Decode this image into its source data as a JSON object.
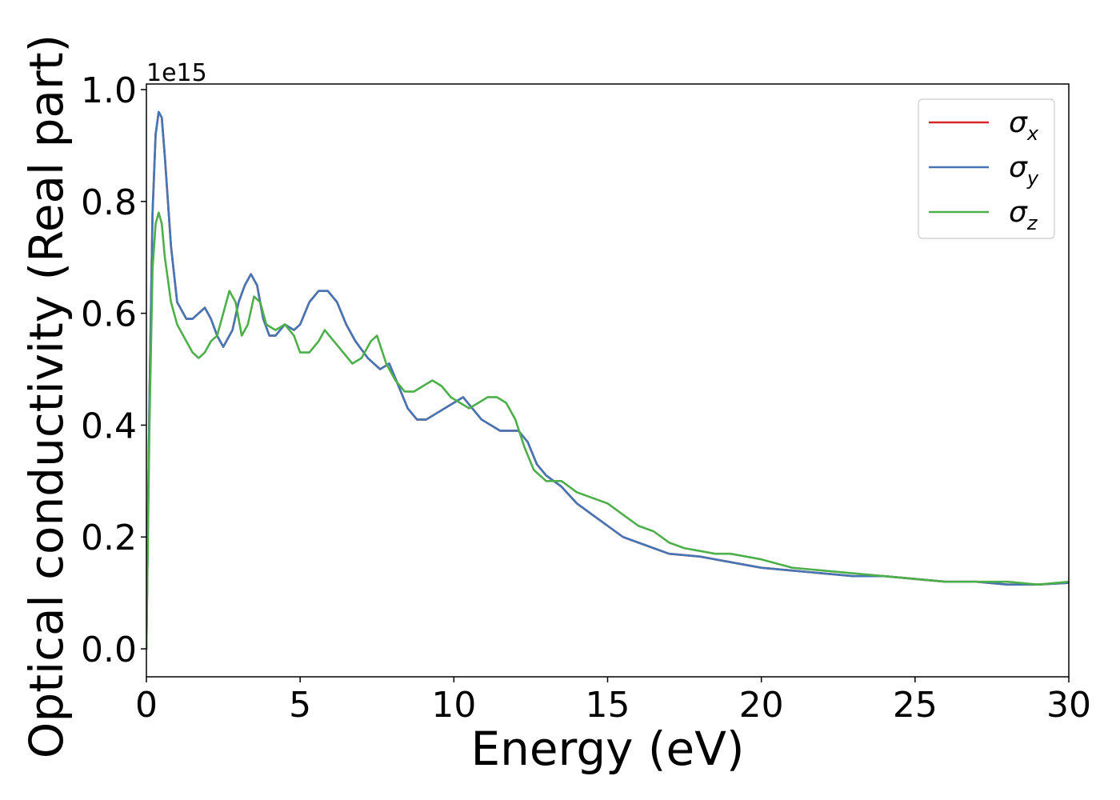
{
  "chart_data": {
    "type": "line",
    "title": "",
    "xlabel": "Energy (eV)",
    "ylabel": "Optical conductivity (Real part)",
    "y_offset_label": "1e15",
    "xlim": [
      0,
      30
    ],
    "ylim": [
      -0.05,
      1.01
    ],
    "x_ticks": [
      0,
      5,
      10,
      15,
      20,
      25,
      30
    ],
    "y_ticks": [
      0.0,
      0.2,
      0.4,
      0.6,
      0.8,
      1.0
    ],
    "grid": false,
    "legend_position": "top-right",
    "series": [
      {
        "name": "σx",
        "legend_symbol": "σ",
        "legend_sub": "x",
        "color": "#d62728",
        "x": [
          0,
          0.1,
          0.2,
          0.3,
          0.4,
          0.5,
          0.6,
          0.8,
          1.0,
          1.3,
          1.5,
          1.7,
          1.9,
          2.1,
          2.3,
          2.5,
          2.8,
          3.0,
          3.2,
          3.4,
          3.6,
          3.8,
          4.0,
          4.2,
          4.5,
          4.8,
          5.0,
          5.3,
          5.6,
          5.9,
          6.2,
          6.5,
          6.8,
          7.2,
          7.6,
          7.9,
          8.2,
          8.5,
          8.8,
          9.1,
          9.4,
          9.7,
          10.0,
          10.3,
          10.6,
          10.9,
          11.2,
          11.5,
          11.8,
          12.1,
          12.4,
          12.7,
          13.0,
          13.5,
          14.0,
          14.5,
          15.0,
          15.5,
          16.0,
          16.5,
          17.0,
          18.0,
          19.0,
          20.0,
          21.0,
          22.0,
          23.0,
          24.0,
          25.0,
          26.0,
          27.0,
          28.0,
          29.0,
          30.0
        ],
        "values": [
          0.0,
          0.45,
          0.78,
          0.92,
          0.96,
          0.95,
          0.88,
          0.72,
          0.62,
          0.59,
          0.59,
          0.6,
          0.61,
          0.59,
          0.56,
          0.54,
          0.57,
          0.62,
          0.65,
          0.67,
          0.65,
          0.59,
          0.56,
          0.56,
          0.58,
          0.57,
          0.58,
          0.62,
          0.64,
          0.64,
          0.62,
          0.58,
          0.55,
          0.52,
          0.5,
          0.51,
          0.47,
          0.43,
          0.41,
          0.41,
          0.42,
          0.43,
          0.44,
          0.45,
          0.43,
          0.41,
          0.4,
          0.39,
          0.39,
          0.39,
          0.37,
          0.33,
          0.31,
          0.29,
          0.26,
          0.24,
          0.22,
          0.2,
          0.19,
          0.18,
          0.17,
          0.165,
          0.155,
          0.145,
          0.14,
          0.135,
          0.13,
          0.13,
          0.125,
          0.12,
          0.12,
          0.115,
          0.115,
          0.118
        ]
      },
      {
        "name": "σy",
        "legend_symbol": "σ",
        "legend_sub": "y",
        "color": "#4575b4",
        "x": [
          0,
          0.1,
          0.2,
          0.3,
          0.4,
          0.5,
          0.6,
          0.8,
          1.0,
          1.3,
          1.5,
          1.7,
          1.9,
          2.1,
          2.3,
          2.5,
          2.8,
          3.0,
          3.2,
          3.4,
          3.6,
          3.8,
          4.0,
          4.2,
          4.5,
          4.8,
          5.0,
          5.3,
          5.6,
          5.9,
          6.2,
          6.5,
          6.8,
          7.2,
          7.6,
          7.9,
          8.2,
          8.5,
          8.8,
          9.1,
          9.4,
          9.7,
          10.0,
          10.3,
          10.6,
          10.9,
          11.2,
          11.5,
          11.8,
          12.1,
          12.4,
          12.7,
          13.0,
          13.5,
          14.0,
          14.5,
          15.0,
          15.5,
          16.0,
          16.5,
          17.0,
          18.0,
          19.0,
          20.0,
          21.0,
          22.0,
          23.0,
          24.0,
          25.0,
          26.0,
          27.0,
          28.0,
          29.0,
          30.0
        ],
        "values": [
          0.0,
          0.45,
          0.78,
          0.92,
          0.96,
          0.95,
          0.88,
          0.72,
          0.62,
          0.59,
          0.59,
          0.6,
          0.61,
          0.59,
          0.56,
          0.54,
          0.57,
          0.62,
          0.65,
          0.67,
          0.65,
          0.59,
          0.56,
          0.56,
          0.58,
          0.57,
          0.58,
          0.62,
          0.64,
          0.64,
          0.62,
          0.58,
          0.55,
          0.52,
          0.5,
          0.51,
          0.47,
          0.43,
          0.41,
          0.41,
          0.42,
          0.43,
          0.44,
          0.45,
          0.43,
          0.41,
          0.4,
          0.39,
          0.39,
          0.39,
          0.37,
          0.33,
          0.31,
          0.29,
          0.26,
          0.24,
          0.22,
          0.2,
          0.19,
          0.18,
          0.17,
          0.165,
          0.155,
          0.145,
          0.14,
          0.135,
          0.13,
          0.13,
          0.125,
          0.12,
          0.12,
          0.115,
          0.115,
          0.118
        ]
      },
      {
        "name": "σz",
        "legend_symbol": "σ",
        "legend_sub": "z",
        "color": "#4daf4a",
        "x": [
          0,
          0.1,
          0.2,
          0.3,
          0.4,
          0.5,
          0.6,
          0.8,
          1.0,
          1.3,
          1.5,
          1.7,
          1.9,
          2.1,
          2.3,
          2.5,
          2.7,
          2.9,
          3.1,
          3.3,
          3.5,
          3.7,
          3.9,
          4.2,
          4.5,
          4.8,
          5.0,
          5.3,
          5.6,
          5.8,
          6.1,
          6.4,
          6.7,
          7.0,
          7.3,
          7.5,
          7.8,
          8.1,
          8.4,
          8.7,
          9.0,
          9.3,
          9.6,
          9.9,
          10.2,
          10.5,
          10.8,
          11.1,
          11.4,
          11.7,
          12.0,
          12.3,
          12.6,
          13.0,
          13.5,
          14.0,
          14.5,
          15.0,
          15.5,
          16.0,
          16.5,
          17.0,
          17.5,
          18.0,
          18.5,
          19.0,
          19.5,
          20.0,
          21.0,
          22.0,
          23.0,
          24.0,
          25.0,
          26.0,
          27.0,
          28.0,
          29.0,
          30.0
        ],
        "values": [
          0.0,
          0.4,
          0.68,
          0.76,
          0.78,
          0.76,
          0.7,
          0.62,
          0.58,
          0.55,
          0.53,
          0.52,
          0.53,
          0.55,
          0.56,
          0.6,
          0.64,
          0.62,
          0.56,
          0.58,
          0.63,
          0.62,
          0.58,
          0.57,
          0.58,
          0.56,
          0.53,
          0.53,
          0.55,
          0.57,
          0.55,
          0.53,
          0.51,
          0.52,
          0.55,
          0.56,
          0.51,
          0.48,
          0.46,
          0.46,
          0.47,
          0.48,
          0.47,
          0.45,
          0.44,
          0.43,
          0.44,
          0.45,
          0.45,
          0.44,
          0.41,
          0.36,
          0.32,
          0.3,
          0.3,
          0.28,
          0.27,
          0.26,
          0.24,
          0.22,
          0.21,
          0.19,
          0.18,
          0.175,
          0.17,
          0.17,
          0.165,
          0.16,
          0.145,
          0.14,
          0.135,
          0.13,
          0.125,
          0.12,
          0.12,
          0.12,
          0.115,
          0.12
        ]
      }
    ]
  }
}
